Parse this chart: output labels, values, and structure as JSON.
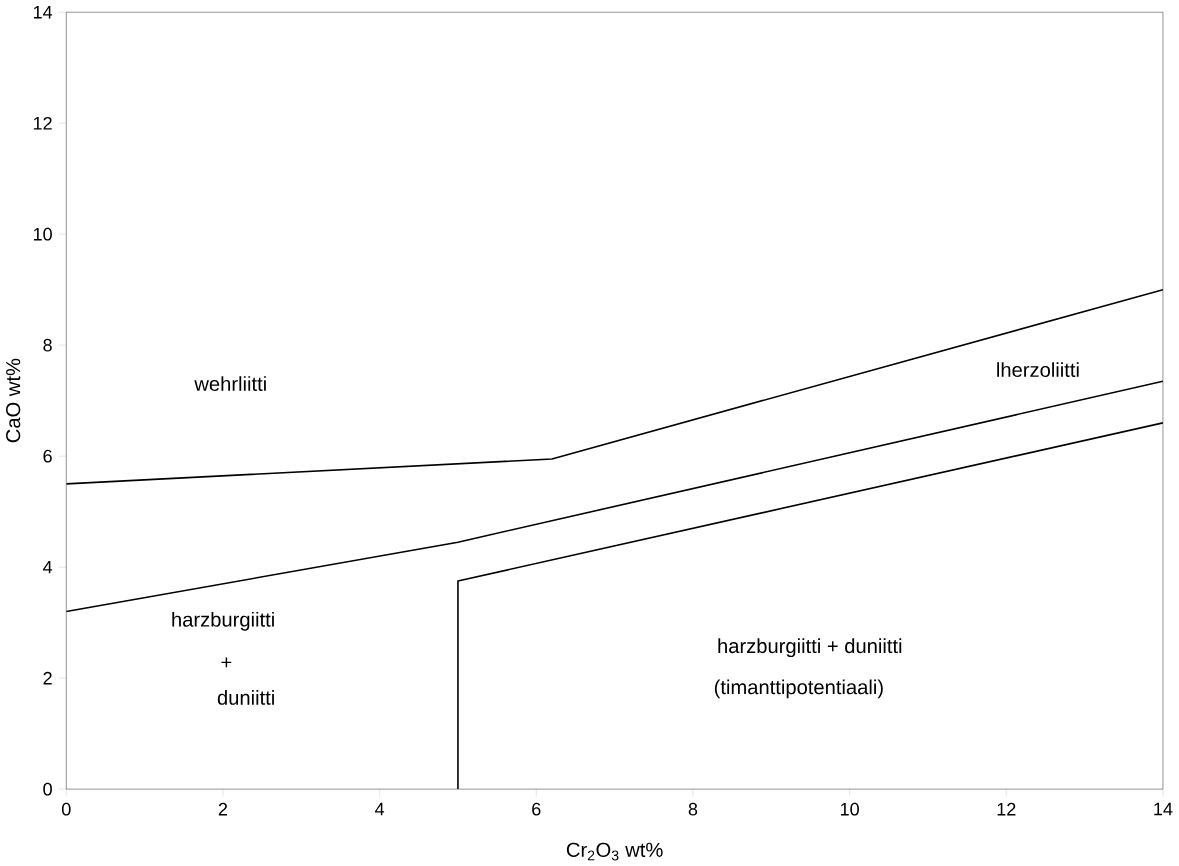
{
  "chart_data": {
    "type": "line",
    "xlabel": "Cr$_{2}$O$_{3}$ wt%",
    "ylabel": "CaO wt%",
    "xlim": [
      0,
      14
    ],
    "ylim": [
      0,
      14
    ],
    "xticks": [
      0,
      2,
      4,
      6,
      8,
      10,
      12,
      14
    ],
    "yticks": [
      0,
      2,
      4,
      6,
      8,
      10,
      12,
      14
    ],
    "grid": false,
    "marker": "none",
    "line_style": "solid",
    "series": [
      {
        "color": "#000000",
        "x": [
          0,
          6.2,
          14
        ],
        "values": [
          5.5,
          5.95,
          9.0
        ]
      },
      {
        "color": "#000000",
        "x": [
          0,
          5,
          14
        ],
        "values": [
          3.2,
          4.45,
          7.35
        ]
      },
      {
        "color": "#000000",
        "x": [
          5,
          5,
          14
        ],
        "values": [
          0,
          3.75,
          6.6
        ]
      }
    ],
    "annotations": [
      "wehrliitti",
      "lherzoliitti",
      "harzburgiitti",
      "+",
      "duniitti",
      "harzburgiitti + duniitti",
      "(timanttipotentiaali)"
    ]
  }
}
